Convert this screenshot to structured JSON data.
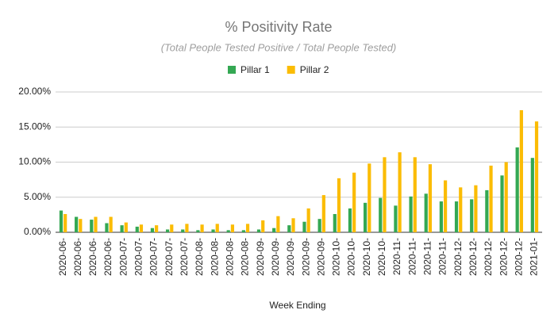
{
  "chart_data": {
    "type": "bar",
    "title": "% Positivity Rate",
    "subtitle": "(Total People Tested Positive / Total People Tested)",
    "x_label": "Week Ending",
    "categories": [
      "2020-06-",
      "2020-06-",
      "2020-06-",
      "2020-06-",
      "2020-07-",
      "2020-07-",
      "2020-07-",
      "2020-07-",
      "2020-07-",
      "2020-08-",
      "2020-08-",
      "2020-08-",
      "2020-08-",
      "2020-09-",
      "2020-09-",
      "2020-09-",
      "2020-09-",
      "2020-09-",
      "2020-10-",
      "2020-10-",
      "2020-10-",
      "2020-10-",
      "2020-11-",
      "2020-11-",
      "2020-11-",
      "2020-11-",
      "2020-12-",
      "2020-12-",
      "2020-12-",
      "2020-12-",
      "2020-12-",
      "2021-01-"
    ],
    "series": [
      {
        "name": "Pillar 1",
        "color": "#34a853",
        "values": [
          3.1,
          2.2,
          1.8,
          1.3,
          1.0,
          0.8,
          0.6,
          0.4,
          0.4,
          0.3,
          0.4,
          0.3,
          0.3,
          0.4,
          0.6,
          1.0,
          1.5,
          1.9,
          2.6,
          3.4,
          4.2,
          4.9,
          3.8,
          5.1,
          5.5,
          4.4,
          4.4,
          4.7,
          6.0,
          8.1,
          12.1,
          10.6
        ]
      },
      {
        "name": "Pillar 2",
        "color": "#fbbc04",
        "values": [
          2.6,
          1.9,
          2.2,
          2.2,
          1.4,
          1.1,
          1.0,
          1.1,
          1.2,
          1.1,
          1.2,
          1.1,
          1.2,
          1.7,
          2.3,
          2.0,
          3.4,
          5.3,
          7.7,
          8.5,
          9.8,
          10.7,
          11.4,
          10.7,
          9.7,
          7.4,
          6.4,
          6.7,
          9.5,
          10.0,
          17.4,
          15.8
        ]
      }
    ],
    "ylim": [
      0,
      20
    ],
    "yticks": [
      {
        "value": 0,
        "label": "0.00%"
      },
      {
        "value": 5,
        "label": "5.00%"
      },
      {
        "value": 10,
        "label": "10.00%"
      },
      {
        "value": 15,
        "label": "15.00%"
      },
      {
        "value": 20,
        "label": "20.00%"
      }
    ],
    "grid": true,
    "legend": "top"
  }
}
